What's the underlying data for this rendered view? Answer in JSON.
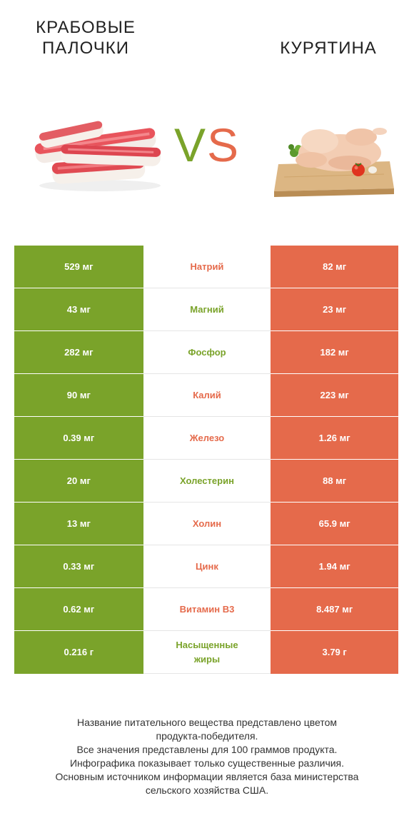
{
  "left_product": {
    "title_line1": "КРАБОВЫЕ",
    "title_line2": "ПАЛОЧКИ"
  },
  "right_product": {
    "title": "КУРЯТИНА"
  },
  "vs": {
    "v": "V",
    "s": "S"
  },
  "colors": {
    "left": "#7aa32a",
    "right": "#e56a4b"
  },
  "chart_data": {
    "type": "table",
    "columns": [
      "Крабовые палочки",
      "",
      "Курятина"
    ],
    "rows": [
      {
        "left": "529 мг",
        "nutrient": "Натрий",
        "right": "82 мг",
        "winner": "right"
      },
      {
        "left": "43 мг",
        "nutrient": "Магний",
        "right": "23 мг",
        "winner": "left"
      },
      {
        "left": "282 мг",
        "nutrient": "Фосфор",
        "right": "182 мг",
        "winner": "left"
      },
      {
        "left": "90 мг",
        "nutrient": "Калий",
        "right": "223 мг",
        "winner": "right"
      },
      {
        "left": "0.39 мг",
        "nutrient": "Железо",
        "right": "1.26 мг",
        "winner": "right"
      },
      {
        "left": "20 мг",
        "nutrient": "Холестерин",
        "right": "88 мг",
        "winner": "left"
      },
      {
        "left": "13 мг",
        "nutrient": "Холин",
        "right": "65.9 мг",
        "winner": "right"
      },
      {
        "left": "0.33 мг",
        "nutrient": "Цинк",
        "right": "1.94 мг",
        "winner": "right"
      },
      {
        "left": "0.62 мг",
        "nutrient": "Витамин B3",
        "right": "8.487 мг",
        "winner": "right"
      },
      {
        "left": "0.216 г",
        "nutrient": "Насыщенные жиры",
        "right": "3.79 г",
        "winner": "left"
      }
    ]
  },
  "footer": {
    "line1": "Название питательного вещества представлено цветом",
    "line2": "продукта-победителя.",
    "line3": "Все значения представлены для 100 граммов продукта.",
    "line4": "Инфографика показывает только существенные различия.",
    "line5": "Основным источником информации является база министерства",
    "line6": "сельского хозяйства США."
  }
}
